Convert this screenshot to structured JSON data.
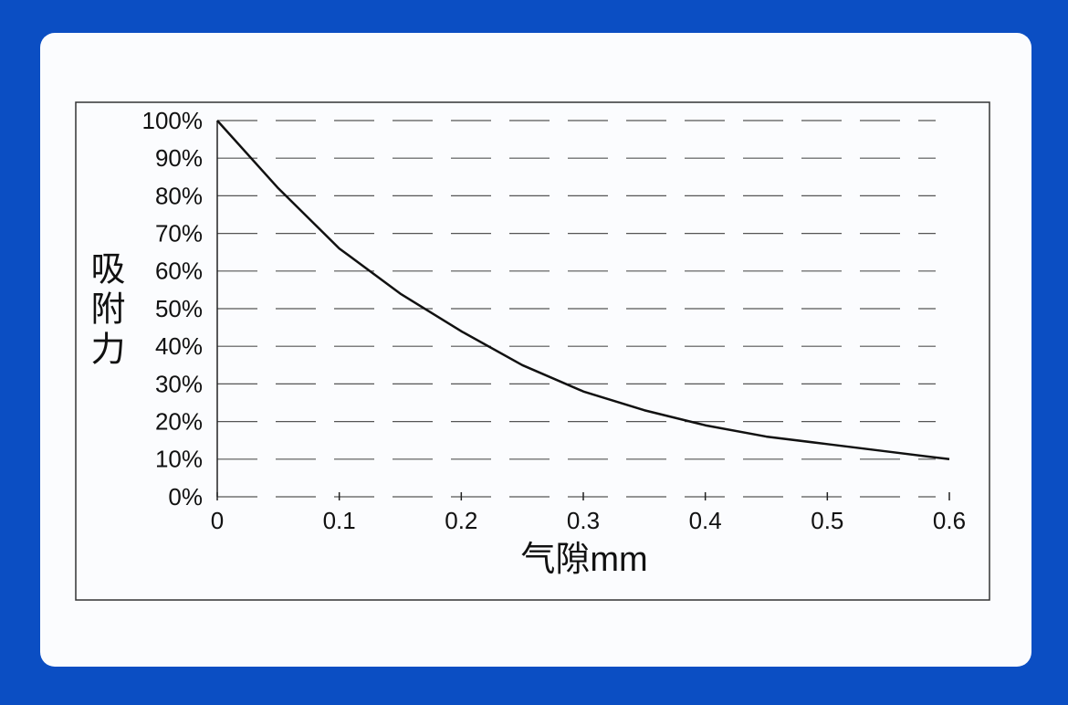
{
  "chart_data": {
    "type": "line",
    "x_label": "气隙mm",
    "y_label": "吸附力",
    "x": [
      0,
      0.05,
      0.1,
      0.15,
      0.2,
      0.25,
      0.3,
      0.35,
      0.4,
      0.45,
      0.5,
      0.55,
      0.6
    ],
    "series": [
      {
        "color": "#111111",
        "values": [
          100,
          82,
          66,
          54,
          44,
          35,
          28,
          23,
          19,
          16,
          14,
          12,
          10
        ]
      }
    ],
    "xlim": [
      0,
      0.6
    ],
    "xticks": [
      0,
      0.1,
      0.2,
      0.3,
      0.4,
      0.5,
      0.6
    ],
    "ylim": [
      0,
      100
    ],
    "yticks": [
      {
        "value": 0,
        "label": "0%"
      },
      {
        "value": 10,
        "label": "10%"
      },
      {
        "value": 20,
        "label": "20%"
      },
      {
        "value": 30,
        "label": "30%"
      },
      {
        "value": 40,
        "label": "40%"
      },
      {
        "value": 50,
        "label": "50%"
      },
      {
        "value": 60,
        "label": "60%"
      },
      {
        "value": 70,
        "label": "70%"
      },
      {
        "value": 80,
        "label": "80%"
      },
      {
        "value": 90,
        "label": "90%"
      },
      {
        "value": 100,
        "label": "100%"
      }
    ],
    "grid": true
  }
}
